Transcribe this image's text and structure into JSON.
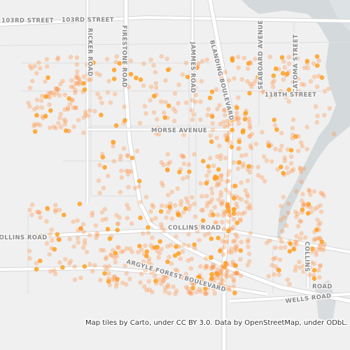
{
  "map": {
    "labels": [
      "103RD STREET",
      "103RD STREET",
      "RICKER ROAD",
      "FIRESTONE ROAD",
      "JAMMES ROAD",
      "BLANDING BOULEVARD",
      "SEABOARD AVENUE",
      "CATOMA STREET",
      "118TH STREET",
      "MORSE AVENUE",
      "COLLINS ROAD",
      "COLLINS ROAD",
      "ARGYLE FOREST BOULEVARD",
      "WELLS ROAD",
      "COLLINS",
      "ROAD"
    ],
    "attribution": "Map tiles by Carto, under CC BY 3.0. Data by OpenStreetMap, under ODbL."
  }
}
